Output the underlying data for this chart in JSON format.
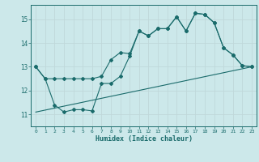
{
  "xlabel": "Humidex (Indice chaleur)",
  "ylabel": "",
  "xlim": [
    -0.5,
    23.5
  ],
  "ylim": [
    10.5,
    15.6
  ],
  "yticks": [
    11,
    12,
    13,
    14,
    15
  ],
  "xticks": [
    0,
    1,
    2,
    3,
    4,
    5,
    6,
    7,
    8,
    9,
    10,
    11,
    12,
    13,
    14,
    15,
    16,
    17,
    18,
    19,
    20,
    21,
    22,
    23
  ],
  "bg_color": "#cce8ea",
  "line_color": "#1a6b6b",
  "grid_color": "#b8d8da",
  "line1_x": [
    0,
    1,
    2,
    3,
    4,
    5,
    6,
    7,
    8,
    9,
    10,
    11,
    12,
    13,
    14,
    15,
    16,
    17,
    18,
    19,
    20,
    21,
    22,
    23
  ],
  "line1_y": [
    13.0,
    12.5,
    12.5,
    12.5,
    12.5,
    12.5,
    12.5,
    12.6,
    13.3,
    13.6,
    13.55,
    14.5,
    14.3,
    14.6,
    14.6,
    15.1,
    14.5,
    15.25,
    15.2,
    14.85,
    13.8,
    13.5,
    13.05,
    13.0
  ],
  "line2_x": [
    0,
    1,
    2,
    3,
    4,
    5,
    6,
    7,
    8,
    9,
    10,
    11,
    12,
    13,
    14,
    15,
    16,
    17,
    18,
    19,
    20,
    21,
    22,
    23
  ],
  "line2_y": [
    13.0,
    12.5,
    11.4,
    11.1,
    11.2,
    11.2,
    11.15,
    12.3,
    12.3,
    12.6,
    13.45,
    14.5,
    14.3,
    14.6,
    14.6,
    15.1,
    14.5,
    15.25,
    15.2,
    14.85,
    13.8,
    13.5,
    13.05,
    13.0
  ],
  "line3_x": [
    0,
    23
  ],
  "line3_y": [
    11.1,
    13.0
  ]
}
